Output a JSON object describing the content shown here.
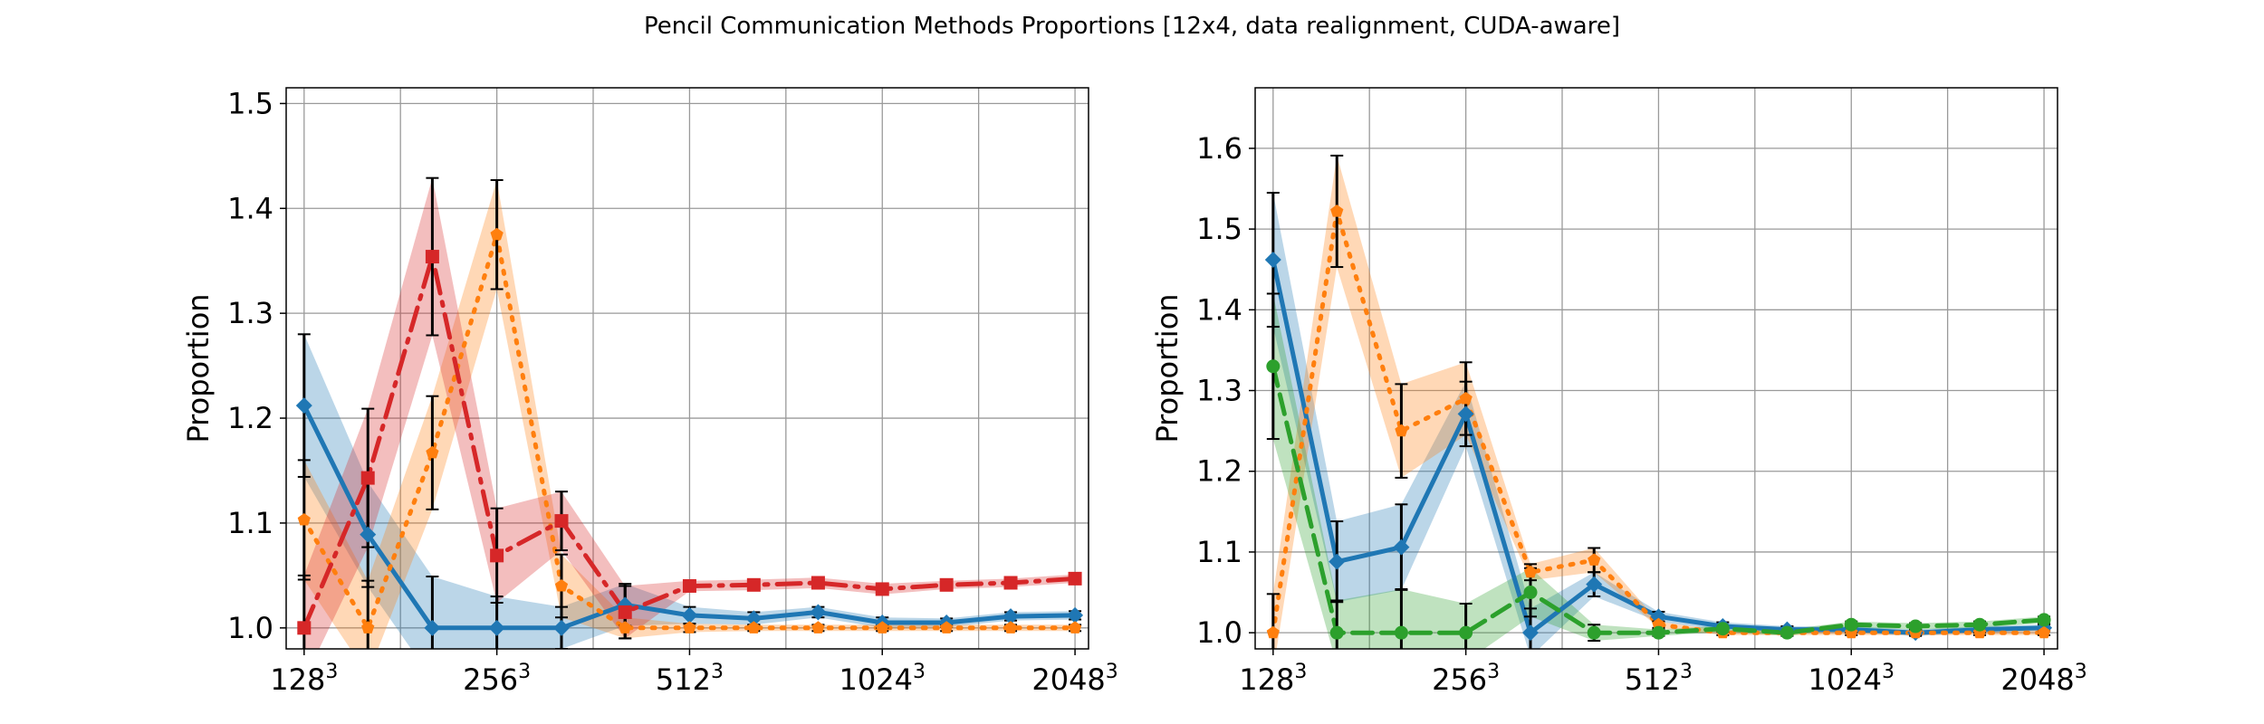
{
  "figure": {
    "title": "Pencil Communication Methods Proportions [12x4, data realignment, CUDA-aware]"
  },
  "chart_data": [
    {
      "type": "line",
      "title": "",
      "xlabel": "",
      "ylabel": "Proportion",
      "x_scale": "log2",
      "x_ticks": [
        {
          "value": 128,
          "base": "128",
          "exp": "3"
        },
        {
          "value": 256,
          "base": "256",
          "exp": "3"
        },
        {
          "value": 512,
          "base": "512",
          "exp": "3"
        },
        {
          "value": 1024,
          "base": "1024",
          "exp": "3"
        },
        {
          "value": 2048,
          "base": "2048",
          "exp": "3"
        }
      ],
      "x_minor": [
        181,
        362,
        724,
        1448
      ],
      "xlim": [
        120,
        2150
      ],
      "ylim": [
        0.98,
        1.515
      ],
      "y_ticks": [
        1.0,
        1.1,
        1.2,
        1.3,
        1.4,
        1.5
      ],
      "grid": true,
      "x": [
        128,
        161,
        203,
        256,
        323,
        406,
        512,
        645,
        813,
        1024,
        1290,
        1625,
        2048
      ],
      "series": [
        {
          "color": "#1f77b4",
          "dash": "solid",
          "marker": "diamond",
          "values": [
            1.212,
            1.089,
            1.0,
            1.0,
            1.0,
            1.022,
            1.012,
            1.009,
            1.015,
            1.005,
            1.005,
            1.011,
            1.012
          ],
          "err": [
            0.068,
            0.05,
            0.049,
            0.03,
            0.02,
            0.02,
            0.008,
            0.006,
            0.005,
            0.005,
            0.004,
            0.004,
            0.004
          ]
        },
        {
          "color": "#ff7f0e",
          "dash": "dotted",
          "marker": "pentagon",
          "values": [
            1.103,
            1.0,
            1.167,
            1.375,
            1.04,
            1.0,
            1.0,
            1.0,
            1.0,
            1.0,
            1.0,
            1.0,
            1.0
          ],
          "err": [
            0.057,
            0.045,
            0.054,
            0.052,
            0.03,
            0.01,
            0.004,
            0.003,
            0.003,
            0.003,
            0.003,
            0.003,
            0.003
          ]
        },
        {
          "color": "#d62728",
          "dash": "dashdot",
          "marker": "square",
          "values": [
            1.0,
            1.143,
            1.354,
            1.069,
            1.102,
            1.015,
            1.04,
            1.041,
            1.043,
            1.037,
            1.041,
            1.043,
            1.047
          ],
          "err": [
            0.05,
            0.066,
            0.075,
            0.045,
            0.028,
            0.025,
            0.005,
            0.005,
            0.005,
            0.005,
            0.004,
            0.004,
            0.004
          ]
        }
      ]
    },
    {
      "type": "line",
      "title": "",
      "xlabel": "",
      "ylabel": "Proportion",
      "x_scale": "log2",
      "x_ticks": [
        {
          "value": 128,
          "base": "128",
          "exp": "3"
        },
        {
          "value": 256,
          "base": "256",
          "exp": "3"
        },
        {
          "value": 512,
          "base": "512",
          "exp": "3"
        },
        {
          "value": 1024,
          "base": "1024",
          "exp": "3"
        },
        {
          "value": 2048,
          "base": "2048",
          "exp": "3"
        }
      ],
      "x_minor": [
        181,
        362,
        724,
        1448
      ],
      "xlim": [
        120,
        2150
      ],
      "ylim": [
        0.98,
        1.675
      ],
      "y_ticks": [
        1.0,
        1.1,
        1.2,
        1.3,
        1.4,
        1.5,
        1.6
      ],
      "grid": true,
      "x": [
        128,
        161,
        203,
        256,
        323,
        406,
        512,
        645,
        813,
        1024,
        1290,
        1625,
        2048
      ],
      "series": [
        {
          "color": "#1f77b4",
          "dash": "solid",
          "marker": "diamond",
          "values": [
            1.462,
            1.088,
            1.106,
            1.271,
            1.0,
            1.06,
            1.02,
            1.008,
            1.004,
            1.004,
            1.0,
            1.004,
            1.006
          ],
          "err": [
            0.083,
            0.05,
            0.053,
            0.04,
            0.03,
            0.015,
            0.006,
            0.005,
            0.004,
            0.004,
            0.004,
            0.004,
            0.004
          ]
        },
        {
          "color": "#ff7f0e",
          "dash": "dotted",
          "marker": "pentagon",
          "values": [
            1.0,
            1.522,
            1.25,
            1.29,
            1.075,
            1.09,
            1.01,
            1.0,
            1.0,
            1.0,
            1.0,
            1.0,
            1.0
          ],
          "err": [
            0.048,
            0.069,
            0.058,
            0.045,
            0.01,
            0.015,
            0.004,
            0.003,
            0.003,
            0.003,
            0.003,
            0.003,
            0.003
          ]
        },
        {
          "color": "#2ca02c",
          "dash": "dashed",
          "marker": "circle",
          "values": [
            1.33,
            1.0,
            1.0,
            1.0,
            1.05,
            1.0,
            1.0,
            1.005,
            1.0,
            1.01,
            1.008,
            1.01,
            1.016
          ],
          "err": [
            0.09,
            0.04,
            0.054,
            0.036,
            0.03,
            0.01,
            0.004,
            0.004,
            0.004,
            0.004,
            0.004,
            0.004,
            0.004
          ]
        }
      ]
    }
  ]
}
